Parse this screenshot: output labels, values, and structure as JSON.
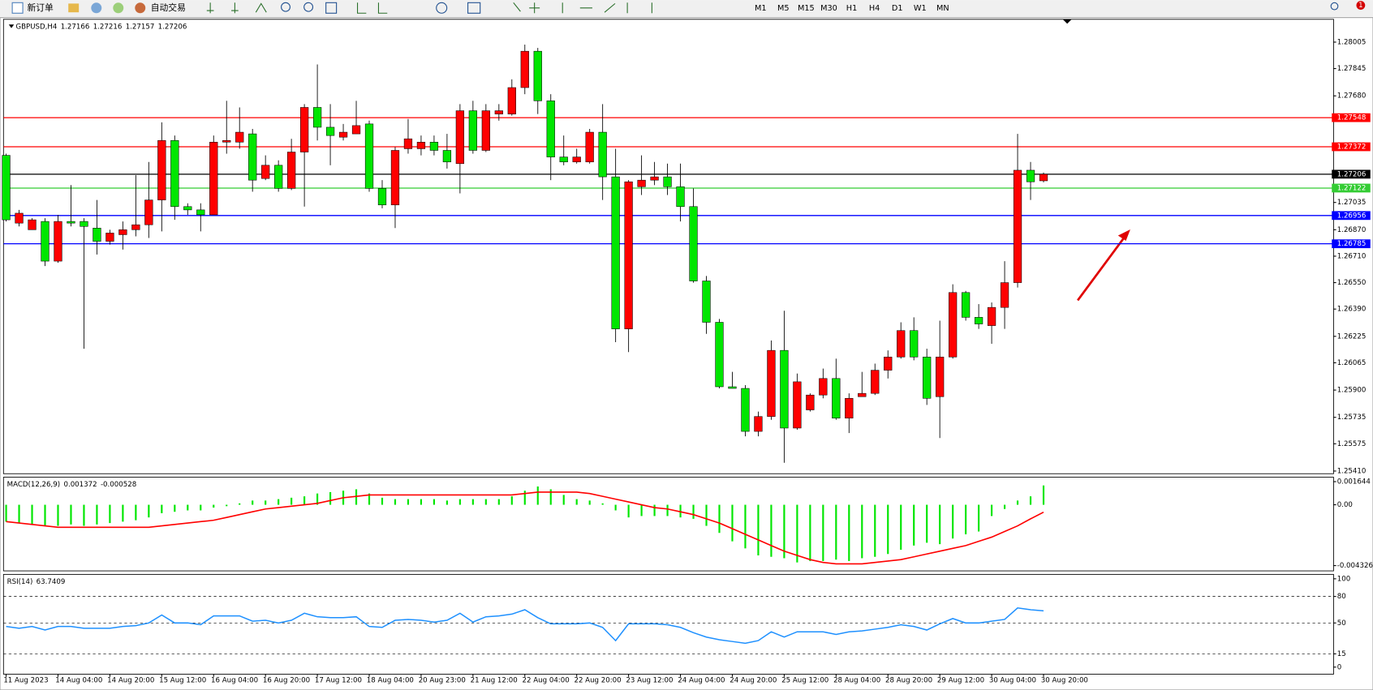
{
  "toolbar": {
    "new_order": "新订单",
    "auto_trading": "自动交易",
    "timeframes": [
      "M1",
      "M5",
      "M15",
      "M30",
      "H1",
      "H4",
      "D1",
      "W1",
      "MN"
    ],
    "notifications": 1
  },
  "chart_data": [
    {
      "type": "candlestick",
      "title": "GBPUSD,H4",
      "categories": [
        "11 Aug 2023",
        null,
        null,
        null,
        "14 Aug 04:00",
        null,
        null,
        null,
        "14 Aug 20:00",
        null,
        null,
        null,
        "15 Aug 12:00",
        null,
        null,
        null,
        "16 Aug 04:00",
        null,
        null,
        null,
        "16 Aug 20:00",
        null,
        null,
        null,
        "17 Aug 12:00",
        null,
        null,
        null,
        "18 Aug 04:00",
        null,
        null,
        null,
        "20 Aug 23:00",
        null,
        null,
        null,
        "21 Aug 12:00",
        null,
        null,
        null,
        "22 Aug 04:00",
        null,
        null,
        null,
        "22 Aug 20:00",
        null,
        null,
        null,
        "23 Aug 12:00",
        null,
        null,
        null,
        "24 Aug 04:00",
        null,
        null,
        null,
        "24 Aug 20:00",
        null,
        null,
        null,
        "25 Aug 12:00",
        null,
        null,
        null,
        "28 Aug 04:00",
        null,
        null,
        null,
        "28 Aug 20:00",
        null,
        null,
        null,
        "29 Aug 12:00",
        null,
        null,
        null,
        "30 Aug 04:00",
        null,
        null,
        null,
        "30 Aug 20:00"
      ],
      "open": [
        1.2732,
        1.2691,
        1.2687,
        1.2692,
        1.2668,
        1.2692,
        1.2692,
        1.2688,
        1.268,
        1.2684,
        1.2687,
        1.269,
        1.2705,
        1.2741,
        1.2701,
        1.2699,
        1.2696,
        1.274,
        1.274,
        1.2745,
        1.2718,
        1.2726,
        1.2712,
        1.2734,
        1.2761,
        1.2749,
        1.2743,
        1.2745,
        1.2751,
        1.2712,
        1.2702,
        1.2736,
        1.2736,
        1.274,
        1.2735,
        1.2727,
        1.2759,
        1.2735,
        1.2757,
        1.2757,
        1.2773,
        1.2795,
        1.2765,
        1.2731,
        1.2728,
        1.2728,
        1.2746,
        1.2719,
        1.2627,
        1.2713,
        1.2717,
        1.2719,
        1.2713,
        1.2701,
        1.2656,
        1.2631,
        1.2592,
        1.2591,
        1.2565,
        1.2574,
        1.2614,
        1.2567,
        1.2578,
        1.2587,
        1.2597,
        1.2573,
        1.2586,
        1.2588,
        1.2602,
        1.261,
        1.2626,
        1.261,
        1.2586,
        1.261,
        1.2649,
        1.2634,
        1.2629,
        1.264,
        1.2655,
        1.2723,
        1.27166
      ],
      "high": [
        1.2733,
        1.2699,
        1.2694,
        1.2694,
        1.2696,
        1.2714,
        1.2694,
        1.2705,
        1.2687,
        1.2692,
        1.272,
        1.2728,
        1.2752,
        1.2744,
        1.2703,
        1.2703,
        1.2744,
        1.2765,
        1.2761,
        1.2748,
        1.2732,
        1.2729,
        1.2742,
        1.2763,
        1.2787,
        1.2763,
        1.2751,
        1.2765,
        1.2753,
        1.2717,
        1.2737,
        1.2754,
        1.2744,
        1.2744,
        1.2745,
        1.2763,
        1.2765,
        1.2763,
        1.2763,
        1.2778,
        1.2799,
        1.2797,
        1.2769,
        1.2744,
        1.2736,
        1.2748,
        1.2763,
        1.2736,
        1.2717,
        1.2732,
        1.2728,
        1.2727,
        1.2727,
        1.2712,
        1.2659,
        1.2633,
        1.2601,
        1.2593,
        1.2577,
        1.262,
        1.2638,
        1.26,
        1.2588,
        1.2603,
        1.2609,
        1.2588,
        1.2601,
        1.2606,
        1.2614,
        1.2631,
        1.2634,
        1.2615,
        1.2632,
        1.2654,
        1.265,
        1.2642,
        1.2643,
        1.2668,
        1.2745,
        1.2728,
        1.27216
      ],
      "low": [
        1.2692,
        1.2689,
        1.2687,
        1.2665,
        1.2667,
        1.2689,
        1.2615,
        1.2672,
        1.2678,
        1.2675,
        1.2683,
        1.2682,
        1.2686,
        1.2693,
        1.2696,
        1.2686,
        1.2696,
        1.2733,
        1.2736,
        1.271,
        1.2717,
        1.271,
        1.2711,
        1.2701,
        1.2741,
        1.2726,
        1.2741,
        1.2745,
        1.271,
        1.27,
        1.2688,
        1.2733,
        1.2732,
        1.2732,
        1.2724,
        1.2709,
        1.2733,
        1.2734,
        1.2753,
        1.2756,
        1.2769,
        1.2757,
        1.2717,
        1.2726,
        1.2727,
        1.2727,
        1.2705,
        1.2619,
        1.2613,
        1.2708,
        1.2714,
        1.2708,
        1.2692,
        1.2655,
        1.2624,
        1.2591,
        1.2591,
        1.2562,
        1.2562,
        1.2572,
        1.2546,
        1.2566,
        1.2577,
        1.2585,
        1.2572,
        1.2564,
        1.2586,
        1.2587,
        1.2597,
        1.2609,
        1.2608,
        1.2581,
        1.2561,
        1.2609,
        1.2632,
        1.2627,
        1.2618,
        1.2627,
        1.2652,
        1.2705,
        1.27157
      ],
      "close": [
        1.2693,
        1.2697,
        1.2693,
        1.2668,
        1.2692,
        1.2691,
        1.2689,
        1.268,
        1.2685,
        1.2687,
        1.269,
        1.2705,
        1.2741,
        1.2701,
        1.2699,
        1.2696,
        1.274,
        1.2741,
        1.2746,
        1.2717,
        1.2726,
        1.2712,
        1.2734,
        1.2761,
        1.2749,
        1.2744,
        1.2746,
        1.275,
        1.2712,
        1.2702,
        1.2735,
        1.2742,
        1.274,
        1.2735,
        1.2728,
        1.2759,
        1.2735,
        1.2759,
        1.2759,
        1.2773,
        1.2795,
        1.2765,
        1.2731,
        1.2728,
        1.2731,
        1.2746,
        1.2719,
        1.2627,
        1.2716,
        1.2717,
        1.2719,
        1.2713,
        1.2701,
        1.2656,
        1.2631,
        1.2592,
        1.2591,
        1.2565,
        1.2574,
        1.2614,
        1.2567,
        1.2595,
        1.2587,
        1.2597,
        1.2573,
        1.2585,
        1.2588,
        1.2602,
        1.261,
        1.2626,
        1.261,
        1.2585,
        1.261,
        1.2649,
        1.2634,
        1.263,
        1.264,
        1.2655,
        1.2723,
        1.2716,
        1.27206
      ],
      "up_color": "#ff0000",
      "down_color": "#00e600",
      "ylim": [
        1.25394,
        1.28143
      ],
      "yticks": [
        1.28005,
        1.27845,
        {
          "value": 1.2768,
          "label": "1.27680"
        },
        1.27035,
        {
          "value": 1.2687,
          "label": "1.26870"
        },
        {
          "value": 1.2671,
          "label": "1.26710"
        },
        {
          "value": 1.2655,
          "label": "1.26550"
        },
        {
          "value": 1.2639,
          "label": "1.26390"
        },
        1.26225,
        1.26065,
        {
          "value": 1.259,
          "label": "1.25900"
        },
        1.25735,
        1.25575,
        {
          "value": 1.2541,
          "label": "1.25410"
        }
      ],
      "hlines": [
        {
          "value": 1.27548,
          "color": "#ff0000"
        },
        {
          "value": 1.27372,
          "color": "#ff0000"
        },
        {
          "value": 1.27206,
          "color": "#000000"
        },
        {
          "value": 1.27122,
          "color": "#33cc33"
        },
        {
          "value": 1.26956,
          "color": "#0000ff"
        },
        {
          "value": 1.26785,
          "color": "#0000ff"
        }
      ]
    },
    {
      "type": "macd",
      "title": "MACD(12,26,9)",
      "histogram": {
        "color": "#00e600",
        "values": [
          -0.0012,
          -0.0013,
          -0.0014,
          -0.0015,
          -0.0015,
          -0.0014,
          -0.0015,
          -0.0014,
          -0.0013,
          -0.0012,
          -0.0011,
          -0.0009,
          -0.0006,
          -0.0005,
          -0.0004,
          -0.0004,
          -0.0002,
          -0.0001,
          0.0001,
          0.0003,
          0.0003,
          0.0004,
          0.0005,
          0.0006,
          0.0008,
          0.0009,
          0.001,
          0.0011,
          0.0008,
          0.0005,
          0.0004,
          0.0004,
          0.0004,
          0.0004,
          0.0003,
          0.0004,
          0.0004,
          0.0004,
          0.0004,
          0.0006,
          0.001,
          0.0013,
          0.0011,
          0.0007,
          0.0004,
          0.0003,
          0.0001,
          -0.0004,
          -0.0009,
          -0.0008,
          -0.0008,
          -0.0008,
          -0.0009,
          -0.001,
          -0.0015,
          -0.002,
          -0.0026,
          -0.0031,
          -0.0036,
          -0.0037,
          -0.0038,
          -0.0041,
          -0.004,
          -0.004,
          -0.0039,
          -0.004,
          -0.0038,
          -0.0037,
          -0.0035,
          -0.0032,
          -0.0029,
          -0.0027,
          -0.0028,
          -0.0024,
          -0.0021,
          -0.0019,
          -0.0008,
          -0.0003,
          0.0003,
          0.0006,
          0.001372
        ]
      },
      "signal": {
        "color": "#ff0000",
        "values": [
          -0.0012,
          -0.0013,
          -0.0014,
          -0.0015,
          -0.0016,
          -0.0016,
          -0.0016,
          -0.0016,
          -0.0016,
          -0.0016,
          -0.0016,
          -0.0016,
          -0.0015,
          -0.0014,
          -0.0013,
          -0.0012,
          -0.0011,
          -0.0009,
          -0.0007,
          -0.0005,
          -0.0003,
          -0.0002,
          -0.0001,
          0.0,
          0.0001,
          0.0003,
          0.0005,
          0.0006,
          0.0007,
          0.0007,
          0.0007,
          0.0007,
          0.0007,
          0.0007,
          0.0007,
          0.0007,
          0.0007,
          0.0007,
          0.0007,
          0.0007,
          0.0008,
          0.0009,
          0.0009,
          0.0009,
          0.0009,
          0.0008,
          0.0006,
          0.0004,
          0.0002,
          0.0,
          -0.0002,
          -0.0003,
          -0.0005,
          -0.0007,
          -0.001,
          -0.0013,
          -0.0017,
          -0.0021,
          -0.0025,
          -0.0029,
          -0.0033,
          -0.0036,
          -0.0039,
          -0.0041,
          -0.0042,
          -0.0042,
          -0.0042,
          -0.0041,
          -0.004,
          -0.0039,
          -0.0037,
          -0.0035,
          -0.0033,
          -0.0031,
          -0.0029,
          -0.0026,
          -0.0023,
          -0.0019,
          -0.0015,
          -0.001,
          -0.000528
        ]
      },
      "ylim": [
        -0.0047,
        0.00196
      ],
      "yticks": [
        0.001644,
        {
          "value": 0,
          "label": "0.00"
        },
        -0.004326
      ]
    },
    {
      "type": "line",
      "title": "RSI(14)",
      "color": "#1e90ff",
      "values": [
        46,
        44,
        46,
        42,
        46,
        46,
        44,
        44,
        44,
        46,
        47,
        50,
        59,
        50,
        50,
        48,
        58,
        58,
        58,
        52,
        53,
        50,
        53,
        61,
        57,
        56,
        56,
        57,
        46,
        45,
        53,
        54,
        53,
        51,
        53,
        61,
        51,
        57,
        58,
        60,
        65,
        56,
        49,
        49,
        49,
        50,
        45,
        30,
        49,
        49,
        49,
        48,
        45,
        39,
        34,
        31,
        29,
        27,
        30,
        40,
        34,
        40,
        40,
        40,
        37,
        40,
        41,
        43,
        45,
        48,
        46,
        42,
        49,
        55,
        50,
        50,
        52,
        54,
        67,
        65,
        63.7409
      ],
      "ylim": [
        -8,
        105
      ],
      "yticks": [
        100,
        80,
        50,
        15,
        0
      ],
      "grid": "dashed"
    }
  ]
}
